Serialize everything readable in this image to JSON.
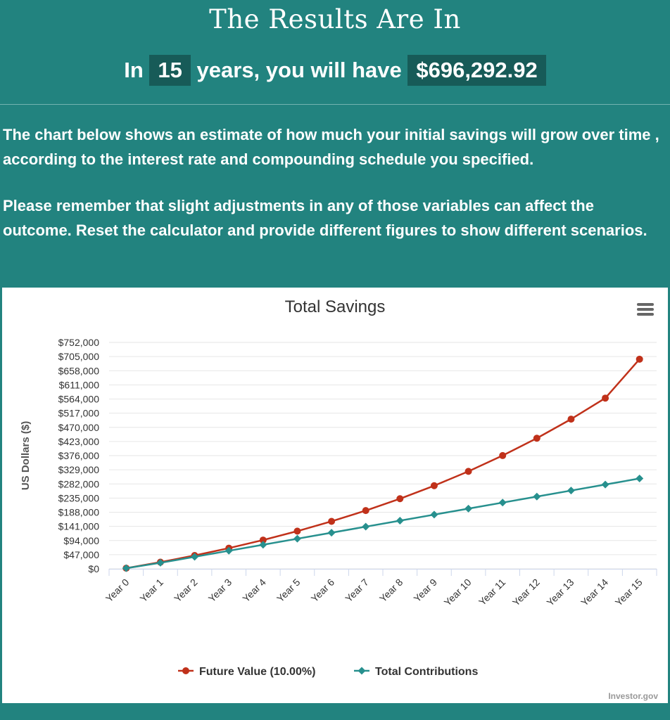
{
  "header": {
    "title": "The Results Are In",
    "summary_prefix": "In",
    "years": "15",
    "summary_middle": "years, you will have",
    "amount": "$696,292.92"
  },
  "body_text": {
    "paragraph1": "The chart below shows an estimate of how much your initial savings will grow over time , according to the interest rate and compounding schedule you specified.",
    "paragraph2": "Please remember that slight adjustments in any of those variables can affect the outcome. Reset the calculator and provide different figures to show different scenarios."
  },
  "colors": {
    "background": "#22837f",
    "highlight": "#175b58",
    "future_value": "#c0311a",
    "contributions": "#27908e"
  },
  "chart_menu_icon": "hamburger-menu-icon",
  "chart_data": {
    "type": "line",
    "title": "Total Savings",
    "ylabel": "US Dollars ($)",
    "xlabel": "",
    "categories": [
      "Year 0",
      "Year 1",
      "Year 2",
      "Year 3",
      "Year 4",
      "Year 5",
      "Year 6",
      "Year 7",
      "Year 8",
      "Year 9",
      "Year 10",
      "Year 11",
      "Year 12",
      "Year 13",
      "Year 14",
      "Year 15"
    ],
    "y_ticks": [
      "$0",
      "$47,000",
      "$94,000",
      "$141,000",
      "$188,000",
      "$235,000",
      "$282,000",
      "$329,000",
      "$376,000",
      "$423,000",
      "$470,000",
      "$517,000",
      "$564,000",
      "$611,000",
      "$658,000",
      "$705,000",
      "$752,000"
    ],
    "ylim": [
      0,
      752000
    ],
    "grid": true,
    "legend_position": "bottom-center",
    "series": [
      {
        "name": "Future Value (10.00%)",
        "marker": "circle",
        "values": [
          2000,
          22100,
          44300,
          68700,
          95600,
          125200,
          157700,
          193500,
          232900,
          276100,
          323800,
          376200,
          433800,
          497200,
          567000,
          696293
        ]
      },
      {
        "name": "Total Contributions",
        "marker": "diamond",
        "values": [
          2000,
          20000,
          40000,
          60000,
          80000,
          100000,
          120000,
          140000,
          160000,
          180000,
          200000,
          220000,
          240000,
          260000,
          280000,
          300000
        ]
      }
    ],
    "credit": "Investor.gov"
  }
}
